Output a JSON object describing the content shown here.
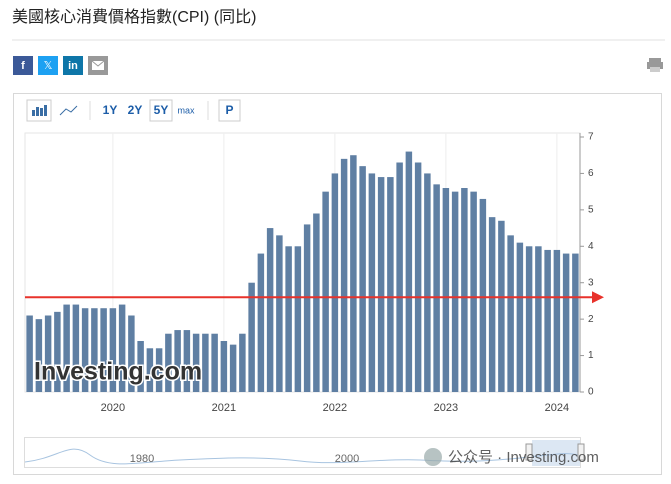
{
  "header": {
    "title": "美國核心消費價格指數(CPI) (同比)"
  },
  "share": [
    "f",
    "𝕏",
    "in"
  ],
  "toolbar": {
    "ranges": [
      "1Y",
      "2Y",
      "5Y",
      "max"
    ],
    "p": "P"
  },
  "chart_data": {
    "type": "bar",
    "categories": [
      null,
      null,
      null,
      null,
      null,
      null,
      null,
      null,
      null,
      "2020",
      null,
      null,
      null,
      null,
      null,
      null,
      null,
      null,
      null,
      null,
      null,
      "2021",
      null,
      null,
      null,
      null,
      null,
      null,
      null,
      null,
      null,
      null,
      null,
      "2022",
      null,
      null,
      null,
      null,
      null,
      null,
      null,
      null,
      null,
      null,
      null,
      "2023",
      null,
      null,
      null,
      null,
      null,
      null,
      null,
      null,
      null,
      null,
      null,
      "2024",
      null,
      null
    ],
    "values": [
      2.1,
      2.0,
      2.1,
      2.2,
      2.4,
      2.4,
      2.3,
      2.3,
      2.3,
      2.3,
      2.4,
      2.1,
      1.4,
      1.2,
      1.2,
      1.6,
      1.7,
      1.7,
      1.6,
      1.6,
      1.6,
      1.4,
      1.3,
      1.6,
      3.0,
      3.8,
      4.5,
      4.3,
      4.0,
      4.0,
      4.6,
      4.9,
      5.5,
      6.0,
      6.4,
      6.5,
      6.2,
      6.0,
      5.9,
      5.9,
      6.3,
      6.6,
      6.3,
      6.0,
      5.7,
      5.6,
      5.5,
      5.6,
      5.5,
      5.3,
      4.8,
      4.7,
      4.3,
      4.1,
      4.0,
      4.0,
      3.9,
      3.9,
      3.8,
      3.8
    ],
    "color": "#5f7fa3",
    "ylim": [
      0,
      7
    ],
    "yticks": [
      0,
      1,
      2,
      3,
      4,
      5,
      6,
      7
    ],
    "reference_line": {
      "value": 2.6,
      "color": "#e8322b"
    },
    "logo": "Investing.com",
    "navigator_labels": [
      "1980",
      "2000"
    ]
  },
  "watermark": "公众号 · Investing.com"
}
